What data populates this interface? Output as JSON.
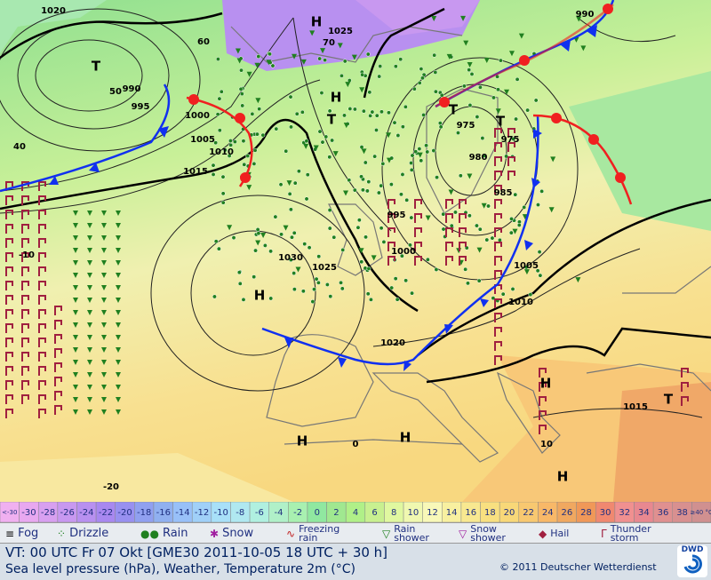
{
  "map": {
    "labels": [
      "1020",
      "H",
      "1025",
      "60",
      "70",
      "990",
      "T",
      "50",
      "990",
      "995",
      "1000",
      "1005",
      "1010",
      "1015",
      "40",
      "H",
      "T",
      "T",
      "T",
      "975",
      "975",
      "980",
      "985",
      "995",
      "1000",
      "1030",
      "1025",
      "H",
      "1005",
      "1010",
      "1020",
      "H",
      "1015",
      "T",
      "H",
      "H",
      "0",
      "-20",
      "H",
      "10",
      "-10"
    ]
  },
  "scale": {
    "labels": [
      "<-30",
      "-30",
      "-28",
      "-26",
      "-24",
      "-22",
      "-20",
      "-18",
      "-16",
      "-14",
      "-12",
      "-10",
      "-8",
      "-6",
      "-4",
      "-2",
      "0",
      "2",
      "4",
      "6",
      "8",
      "10",
      "12",
      "14",
      "16",
      "18",
      "20",
      "22",
      "24",
      "26",
      "28",
      "30",
      "32",
      "34",
      "36",
      "38",
      "≥40 °C"
    ],
    "colors": [
      "#f0b0f0",
      "#e8a8f0",
      "#d8a0f0",
      "#c898f0",
      "#b890f0",
      "#a888f0",
      "#9890f0",
      "#90a0f0",
      "#90b0f0",
      "#98c0f8",
      "#a0d0f8",
      "#a8e0f8",
      "#b0e8f0",
      "#b0f0e0",
      "#b0f0c8",
      "#a8f0b0",
      "#90e8a0",
      "#a0e890",
      "#b0f088",
      "#c8f090",
      "#e0f8a0",
      "#f0f8b0",
      "#f8f8b8",
      "#f8f0a0",
      "#f8e890",
      "#f8e080",
      "#f8d878",
      "#f8c870",
      "#f8b868",
      "#f0a860",
      "#f09858",
      "#f08870",
      "#f09090",
      "#e88890",
      "#e09090",
      "#d89090",
      "#d09090"
    ]
  },
  "legend": {
    "items": [
      "Fog",
      "Drizzle",
      "Rain",
      "Snow",
      "Freezing rain",
      "Rain shower",
      "Snow shower",
      "Hail",
      "Thunder storm"
    ]
  },
  "footer": {
    "valid_time": "VT: 00 UTC Fr  07 Okt [GME30 2011-10-05  18 UTC + 30 h]",
    "description": "Sea level pressure (hPa), Weather, Temperature 2m (°C)",
    "copyright": "© 2011 Deutscher Wetterdienst",
    "logo": "DWD"
  }
}
